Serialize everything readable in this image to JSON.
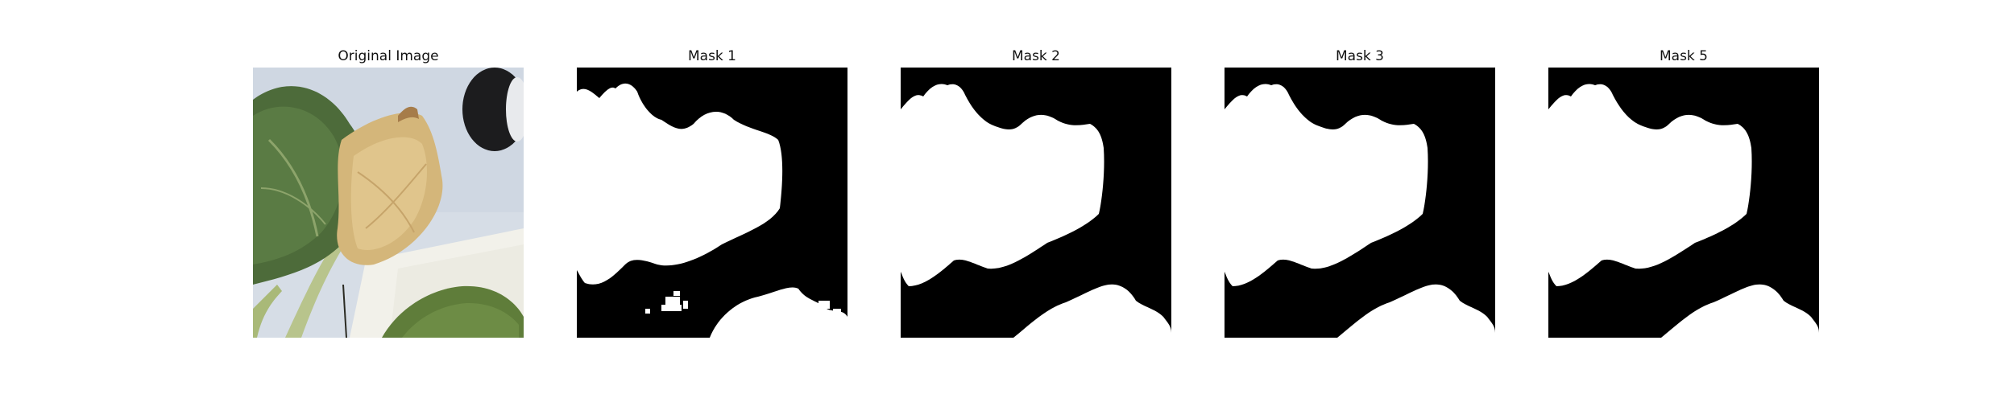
{
  "panels": [
    {
      "title": "Original Image",
      "kind": "photo"
    },
    {
      "title": "Mask 1",
      "kind": "mask"
    },
    {
      "title": "Mask 2",
      "kind": "mask"
    },
    {
      "title": "Mask 3",
      "kind": "mask"
    },
    {
      "title": "Mask 5",
      "kind": "mask"
    }
  ],
  "colors": {
    "background": "#ffffff",
    "mask_foreground": "#ffffff",
    "mask_background": "#000000",
    "title_text": "#111111"
  }
}
